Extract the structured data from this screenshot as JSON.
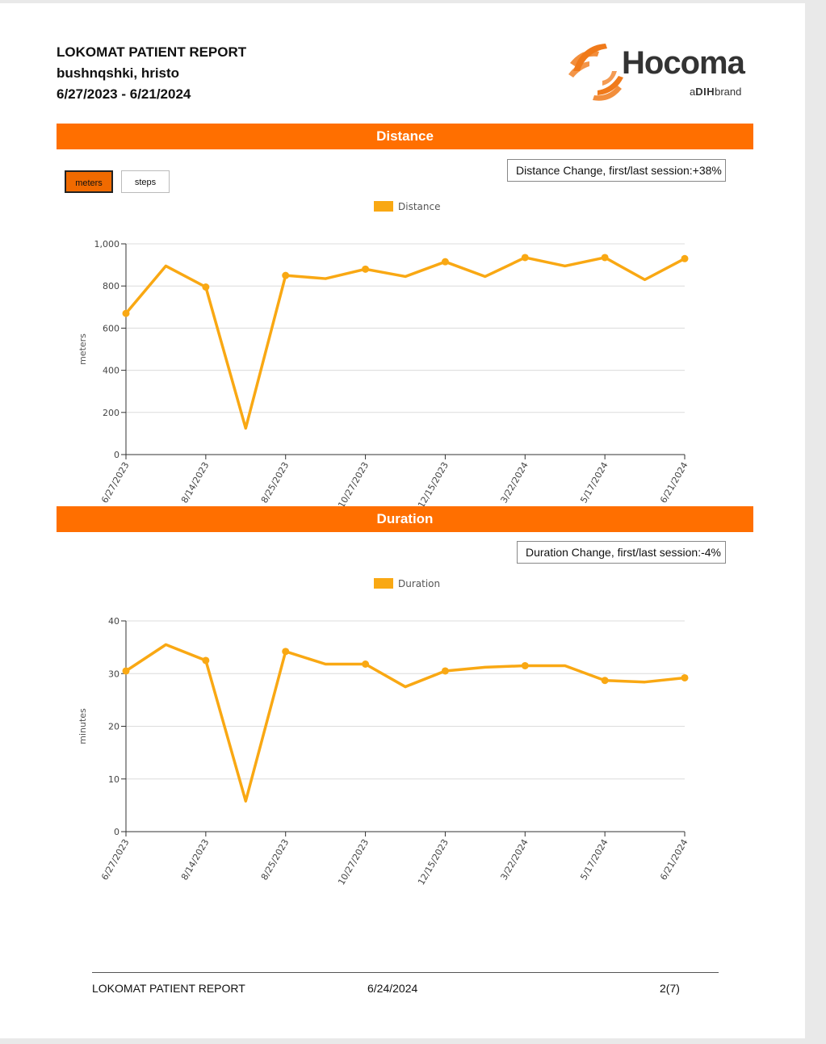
{
  "report": {
    "title": "LOKOMAT PATIENT REPORT",
    "patient": "bushnqshki, hristo",
    "date_range": "6/27/2023 - 6/21/2024"
  },
  "logo": {
    "name": "Hocoma",
    "tagline_pre": "a",
    "tagline_brand": "DIH",
    "tagline_post": "brand",
    "color": "#f07a1a"
  },
  "colors": {
    "accent": "#ff6f00",
    "series": "#f9a813"
  },
  "distance_section": {
    "header": "Distance",
    "unit_buttons": [
      "meters",
      "steps"
    ],
    "selected_unit": "meters",
    "change_text": "Distance Change, first/last session:+38%"
  },
  "duration_section": {
    "header": "Duration",
    "change_text": "Duration Change, first/last session:-4%"
  },
  "chart_data": [
    {
      "type": "line",
      "legend": "Distance",
      "ylabel": "meters",
      "ylim": [
        0,
        1000
      ],
      "yticks": [
        0,
        200,
        400,
        600,
        800,
        1000
      ],
      "ytick_labels": [
        "0",
        "200",
        "400",
        "600",
        "800",
        "1,000"
      ],
      "xtick_labels": [
        "6/27/2023",
        "8/14/2023",
        "8/25/2023",
        "10/27/2023",
        "12/15/2023",
        "3/22/2024",
        "5/17/2024",
        "6/21/2024"
      ],
      "values": [
        670,
        895,
        795,
        125,
        850,
        835,
        880,
        845,
        915,
        845,
        935,
        895,
        935,
        830,
        930
      ],
      "markers": [
        true,
        false,
        true,
        false,
        true,
        false,
        true,
        false,
        true,
        false,
        true,
        false,
        true,
        false,
        true
      ]
    },
    {
      "type": "line",
      "legend": "Duration",
      "ylabel": "minutes",
      "ylim": [
        0,
        40
      ],
      "yticks": [
        0,
        10,
        20,
        30,
        40
      ],
      "ytick_labels": [
        "0",
        "10",
        "20",
        "30",
        "40"
      ],
      "xtick_labels": [
        "6/27/2023",
        "8/14/2023",
        "8/25/2023",
        "10/27/2023",
        "12/15/2023",
        "3/22/2024",
        "5/17/2024",
        "6/21/2024"
      ],
      "values": [
        30.5,
        35.5,
        32.5,
        5.8,
        34.2,
        31.8,
        31.8,
        27.5,
        30.5,
        31.2,
        31.5,
        31.5,
        28.7,
        28.4,
        29.2
      ],
      "markers": [
        true,
        false,
        true,
        false,
        true,
        false,
        true,
        false,
        true,
        false,
        true,
        false,
        true,
        false,
        true
      ]
    }
  ],
  "footer": {
    "title": "LOKOMAT PATIENT REPORT",
    "date": "6/24/2024",
    "page": "2(7)"
  }
}
